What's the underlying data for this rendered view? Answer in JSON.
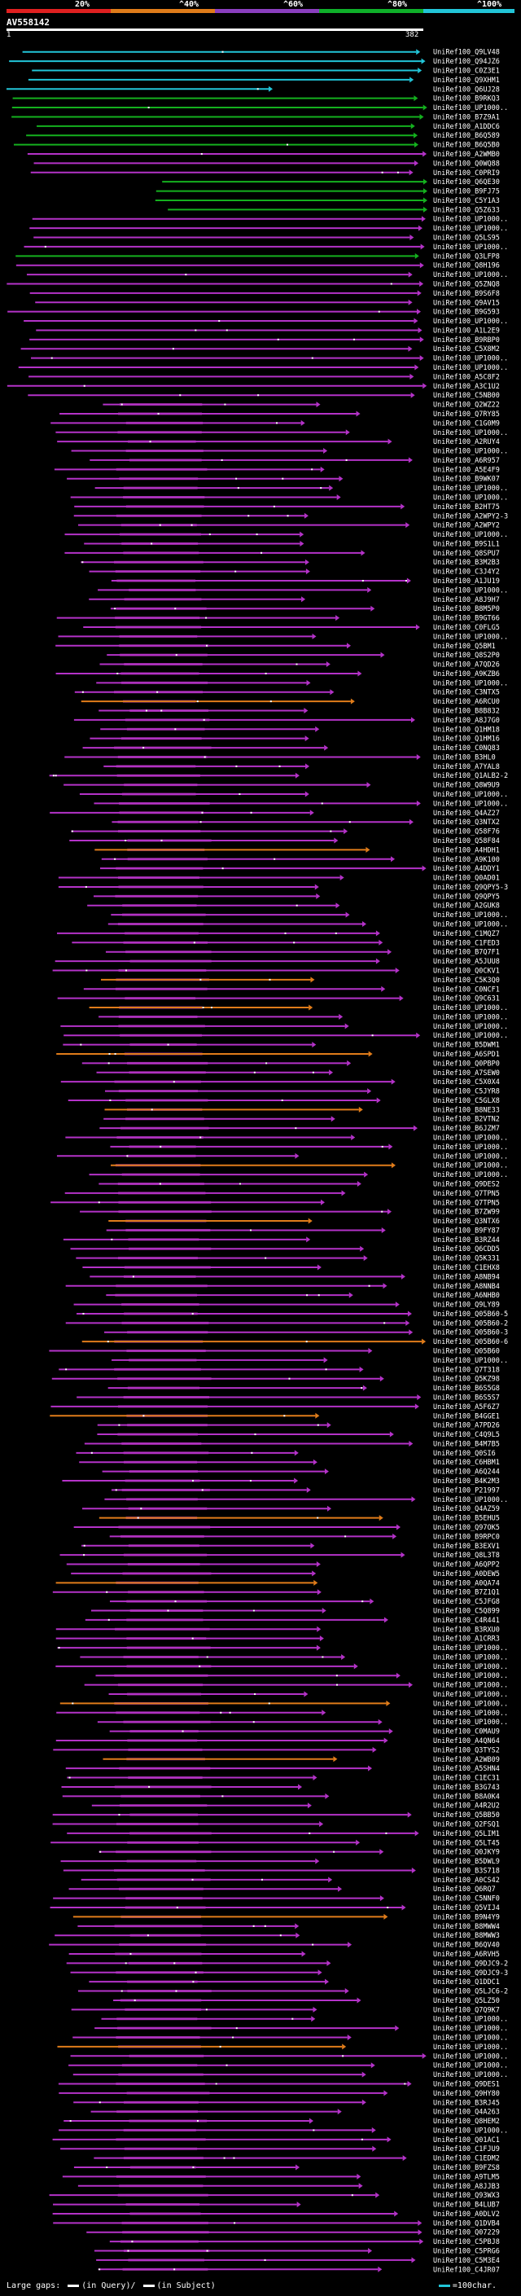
{
  "legend": {
    "labels": [
      "20%",
      "^40%",
      "^60%",
      "^80%",
      "^100%"
    ],
    "colors": [
      "#e02020",
      "#e07c1a",
      "#8b3fbf",
      "#0fb02a",
      "#22c5d8"
    ]
  },
  "query": {
    "id": "AV558142",
    "start_tick": "1",
    "end_tick": "382"
  },
  "colors": {
    "magenta": "#b432c8",
    "green": "#14b01e",
    "cyan": "#22c5d8",
    "orange": "#e07c1a",
    "hatch": "#8a2a8a",
    "dot": "#ffffff",
    "dark": "#2a1a2a"
  },
  "hits": [
    "UniRef100_Q9LV48",
    "UniRef100_Q94JZ6",
    "UniRef100_C0Z3E1",
    "UniRef100_Q9XHM1",
    "UniRef100_Q6UJ28",
    "UniRef100_B9RKQ3",
    "UniRef100_UP1000..",
    "UniRef100_B7Z9A1",
    "UniRef100_A1DDC6",
    "UniRef100_B6Q589",
    "UniRef100_B6Q5B0",
    "UniRef100_A2WMB0",
    "UniRef100_Q0WQ88",
    "UniRef100_C0PRI9",
    "UniRef100_Q6QE30",
    "UniRef100_B9FJ75",
    "UniRef100_C5Y1A3",
    "UniRef100_Q5Z633",
    "UniRef100_UP1000..",
    "UniRef100_UP1000..",
    "UniRef100_Q5LS95",
    "UniRef100_UP1000..",
    "UniRef100_Q3LFP8",
    "UniRef100_Q8H196",
    "UniRef100_UP1000..",
    "UniRef100_Q5ZNQ8",
    "UniRef100_B9S6F8",
    "UniRef100_Q9AV15",
    "UniRef100_B9G593",
    "UniRef100_UP1000..",
    "UniRef100_A1L2E9",
    "UniRef100_B9RBP0",
    "UniRef100_C5X8M2",
    "UniRef100_UP1000..",
    "UniRef100_UP1000..",
    "UniRef100_A5C8F2",
    "UniRef100_A3C1U2",
    "UniRef100_C5NB00",
    "UniRef100_Q2WZ22",
    "UniRef100_Q7RY85",
    "UniRef100_C1G0M9",
    "UniRef100_UP1000..",
    "UniRef100_A2RUY4",
    "UniRef100_UP1000..",
    "UniRef100_A6R957",
    "UniRef100_A5E4F9",
    "UniRef100_B9WK07",
    "UniRef100_UP1000..",
    "UniRef100_UP1000..",
    "UniRef100_B2HT75",
    "UniRef100_A2WPY2-3",
    "UniRef100_A2WPY2",
    "UniRef100_UP1000..",
    "UniRef100_B9S1L1",
    "UniRef100_Q8SPU7",
    "UniRef100_B3M2B3",
    "UniRef100_C3J4Y2",
    "UniRef100_A1JU19",
    "UniRef100_UP1000..",
    "UniRef100_A8J9H7",
    "UniRef100_B8M5P0",
    "UniRef100_B9GT66",
    "UniRef100_C0FLG5",
    "UniRef100_UP1000..",
    "UniRef100_Q5BM1",
    "UniRef100_Q8S2P0",
    "UniRef100_A7QD26",
    "UniRef100_A9KZB6",
    "UniRef100_UP1000..",
    "UniRef100_C3NTX5",
    "UniRef100_A6RCU0",
    "UniRef100_B8B832",
    "UniRef100_A8J7G0",
    "UniRef100_Q1HM18",
    "UniRef100_Q1HM16",
    "UniRef100_C0NQ83",
    "UniRef100_B3HL0",
    "UniRef100_A7YAL8",
    "UniRef100_Q1ALB2-2",
    "UniRef100_Q8W9U9",
    "UniRef100_UP1000..",
    "UniRef100_UP1000..",
    "UniRef100_Q4AZ27",
    "UniRef100_Q3NTX2",
    "UniRef100_Q58F76",
    "UniRef100_Q58F84",
    "UniRef100_A4HDH1",
    "UniRef100_A9K100",
    "UniRef100_A4DDY1",
    "UniRef100_Q0AD01",
    "UniRef100_Q9QPY5-3",
    "UniRef100_Q9QPY5",
    "UniRef100_A2GUK8",
    "UniRef100_UP1000..",
    "UniRef100_UP1000..",
    "UniRef100_C1MQZ7",
    "UniRef100_C1FED3",
    "UniRef100_B7Q7F1",
    "UniRef100_A5JUU8",
    "UniRef100_Q0CKV1",
    "UniRef100_C5K3Q0",
    "UniRef100_C0NCF1",
    "UniRef100_Q9C631",
    "UniRef100_UP1000..",
    "UniRef100_UP1000..",
    "UniRef100_UP1000..",
    "UniRef100_UP1000..",
    "UniRef100_B5DWM1",
    "UniRef100_A6SPD1",
    "UniRef100_Q0PBP0",
    "UniRef100_A7SEW0",
    "UniRef100_C5X0X4",
    "UniRef100_C5JYR8",
    "UniRef100_C5GLX8",
    "UniRef100_B8NE33",
    "UniRef100_B2VTN2",
    "UniRef100_B6JZM7",
    "UniRef100_UP1000..",
    "UniRef100_UP1000..",
    "UniRef100_UP1000..",
    "UniRef100_UP1000..",
    "UniRef100_UP1000..",
    "UniRef100_Q9DES2",
    "UniRef100_Q7TPN5",
    "UniRef100_Q7TPN5",
    "UniRef100_B7ZW99",
    "UniRef100_Q3NTX6",
    "UniRef100_B9FY87",
    "UniRef100_B3RZ44",
    "UniRef100_Q6CDD5",
    "UniRef100_Q5K331",
    "UniRef100_C1EHX8",
    "UniRef100_A8NB94",
    "UniRef100_A8NNB4",
    "UniRef100_A6NHB0",
    "UniRef100_Q9LY89",
    "UniRef100_Q05B60-5",
    "UniRef100_Q05B60-2",
    "UniRef100_Q05B60-3",
    "UniRef100_Q05B60-6",
    "UniRef100_Q05B60",
    "UniRef100_UP1000..",
    "UniRef100_Q7T318",
    "UniRef100_Q5KZ98",
    "UniRef100_B6S5G8",
    "UniRef100_B6S5S7",
    "UniRef100_A5F6Z7",
    "UniRef100_B4GGE1",
    "UniRef100_A7PD26",
    "UniRef100_C4Q9L5",
    "UniRef100_B4M7B5",
    "UniRef100_Q0SI6",
    "UniRef100_C6HBM1",
    "UniRef100_A6Q244",
    "UniRef100_B4K2M3",
    "UniRef100_P21997",
    "UniRef100_UP1000..",
    "UniRef100_Q4AZ59",
    "UniRef100_B5EHU5",
    "UniRef100_Q97OK5",
    "UniRef100_B9RPC0",
    "UniRef100_B3EXV1",
    "UniRef100_Q8L3T8",
    "UniRef100_A6QPP2",
    "UniRef100_A0DEW5",
    "UniRef100_A0QA74",
    "UniRef100_B7Z1Q1",
    "UniRef100_C5JFG8",
    "UniRef100_C5Q899",
    "UniRef100_C4R441",
    "UniRef100_B3RXU0",
    "UniRef100_A1CRR3",
    "UniRef100_UP1000..",
    "UniRef100_UP1000..",
    "UniRef100_UP1000..",
    "UniRef100_UP1000..",
    "UniRef100_UP1000..",
    "UniRef100_UP1000..",
    "UniRef100_UP1000..",
    "UniRef100_UP1000..",
    "UniRef100_UP1000..",
    "UniRef100_C0MAU9",
    "UniRef100_A4QN64",
    "UniRef100_Q3TYS2",
    "UniRef100_A2WB09",
    "UniRef100_A5SHN4",
    "UniRef100_C1EC31",
    "UniRef100_B3G743",
    "UniRef100_B8A0K4",
    "UniRef100_A4R2U2",
    "UniRef100_Q5BB50",
    "UniRef100_Q2FSQ1",
    "UniRef100_Q5LIM1",
    "UniRef100_Q5LT45",
    "UniRef100_Q0JKY9",
    "UniRef100_B5DWL9",
    "UniRef100_B3S718",
    "UniRef100_A0CS42",
    "UniRef100_Q6RQ7",
    "UniRef100_C5NNF0",
    "UniRef100_Q5VIJ4",
    "UniRef100_B9N4Y9",
    "UniRef100_B8MWW4",
    "UniRef100_B8MWW3",
    "UniRef100_B6QV40",
    "UniRef100_A6RVH5",
    "UniRef100_Q9DJC9-2",
    "UniRef100_Q9DJC9-3",
    "UniRef100_Q1DDC1",
    "UniRef100_Q5LJC6-2",
    "UniRef100_Q5LZ50",
    "UniRef100_Q7Q9K7",
    "UniRef100_UP1000..",
    "UniRef100_UP1000..",
    "UniRef100_UP1000..",
    "UniRef100_UP1000..",
    "UniRef100_UP1000..",
    "UniRef100_UP1000..",
    "UniRef100_UP1000..",
    "UniRef100_Q9DES1",
    "UniRef100_Q9HY80",
    "UniRef100_B3RJ45",
    "UniRef100_Q4A263",
    "UniRef100_Q8HEM2",
    "UniRef100_UP1000..",
    "UniRef100_Q01AC1",
    "UniRef100_C1FJU9",
    "UniRef100_C1EDM2",
    "UniRef100_B9FZS8",
    "UniRef100_A9TLM5",
    "UniRef100_A8JJB3",
    "UniRef100_Q93WX3",
    "UniRef100_B4LUB7",
    "UniRef100_A0DLV2",
    "UniRef100_Q1DVB4",
    "UniRef100_Q07229",
    "UniRef100_C5PBJ8",
    "UniRef100_C5PRG6",
    "UniRef100_C5M3E4",
    "UniRef100_C4JR07"
  ],
  "footer": {
    "large_gaps_label": "Large gaps:",
    "query_gap_label": "(in Query)/",
    "subject_gap_label": "(in Subject)",
    "scale_label": "=100char."
  }
}
